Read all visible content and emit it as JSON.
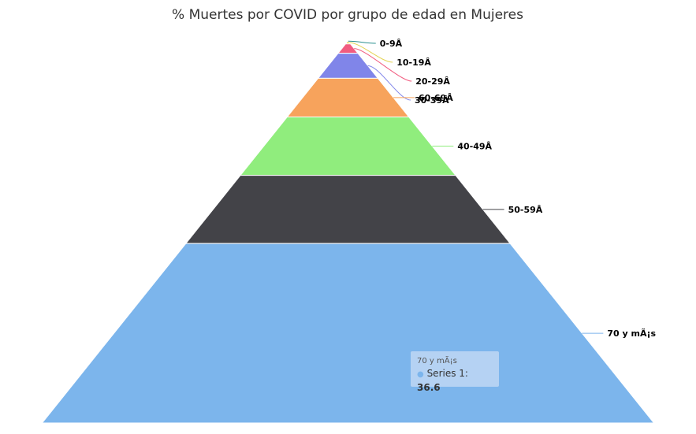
{
  "chart_data": {
    "type": "pyramid",
    "title": "% Muertes por COVID por grupo de edad en Mujeres",
    "series": [
      {
        "name": "Series 1",
        "segments": [
          {
            "label": "0-9Â",
            "value": 0.1,
            "color": "#2b908f"
          },
          {
            "label": "10-19Â",
            "value": 0.5,
            "color": "#e4d354"
          },
          {
            "label": "20-29Â",
            "value": 1.9,
            "color": "#f15c80"
          },
          {
            "label": "30-39Â",
            "value": 5.1,
            "color": "#8085e9"
          },
          {
            "label": "60-69Â",
            "value": 7.9,
            "color": "#f7a35c"
          },
          {
            "label": "40-49Â",
            "value": 11.9,
            "color": "#90ed7d"
          },
          {
            "label": "50-59Â",
            "value": 13.9,
            "color": "#434348"
          },
          {
            "label": "70 y mÃ¡s",
            "value": 36.6,
            "color": "#7cb5ec"
          }
        ]
      }
    ]
  },
  "tooltip": {
    "header": "70 y mÃ¡s",
    "series_label": "Series 1:",
    "value": "36.6"
  }
}
